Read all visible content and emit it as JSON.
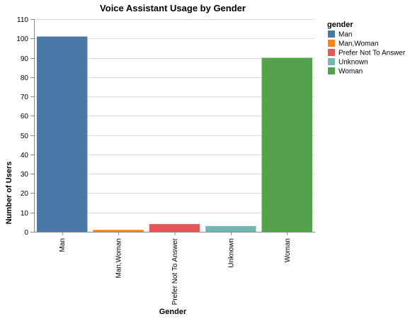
{
  "chart_data": {
    "type": "bar",
    "title": "Voice Assistant Usage by Gender",
    "xlabel": "Gender",
    "ylabel": "Number of Users",
    "categories": [
      "Man",
      "Man,Woman",
      "Prefer Not To Answer",
      "Unknown",
      "Woman"
    ],
    "values": [
      101,
      1,
      4,
      3,
      90
    ],
    "ylim": [
      0,
      110
    ],
    "yticks": [
      0,
      10,
      20,
      30,
      40,
      50,
      60,
      70,
      80,
      90,
      100,
      110
    ],
    "grid": true,
    "legend": {
      "title": "gender",
      "placement": "right",
      "entries": [
        "Man",
        "Man,Woman",
        "Prefer Not To Answer",
        "Unknown",
        "Woman"
      ]
    },
    "colors": [
      "#4c78a8",
      "#f58518",
      "#e45756",
      "#72b7b2",
      "#54a24b"
    ]
  }
}
